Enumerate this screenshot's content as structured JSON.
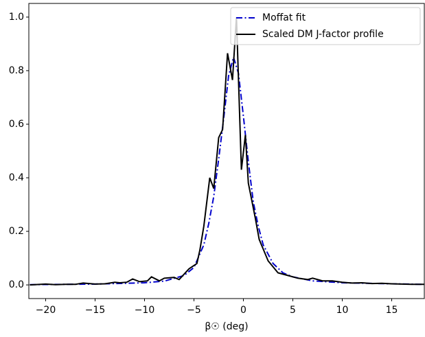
{
  "chart_data": {
    "type": "line",
    "x_label": "β☉ (deg)",
    "xlim": [
      -21.7,
      18.3
    ],
    "ylim": [
      -0.051,
      1.051
    ],
    "xticks": [
      {
        "value": -20,
        "label": "−20"
      },
      {
        "value": -15,
        "label": "−15"
      },
      {
        "value": -10,
        "label": "−10"
      },
      {
        "value": -5,
        "label": "−5"
      },
      0,
      5,
      10,
      15
    ],
    "yticks": [
      {
        "value": 0,
        "label": "0.0"
      },
      0.2,
      0.4,
      0.6,
      0.8,
      {
        "value": 1,
        "label": "1.0"
      }
    ],
    "legend": "upper right",
    "series": [
      {
        "name": "Moffat fit",
        "color": "#0000cc",
        "style": "dashdot",
        "x": [
          -21.6,
          -15,
          -10,
          -8,
          -6,
          -5,
          -4,
          -3.5,
          -3,
          -2.5,
          -2,
          -1.5,
          -1,
          -0.5,
          0,
          0.5,
          1,
          1.5,
          2,
          3,
          4,
          5,
          7,
          10,
          15,
          18.3
        ],
        "values": [
          0.001,
          0.003,
          0.008,
          0.014,
          0.035,
          0.065,
          0.15,
          0.23,
          0.33,
          0.47,
          0.62,
          0.78,
          0.85,
          0.79,
          0.63,
          0.46,
          0.31,
          0.22,
          0.15,
          0.08,
          0.045,
          0.03,
          0.015,
          0.008,
          0.004,
          0.002
        ]
      },
      {
        "name": "Scaled DM J-factor profile",
        "color": "#000000",
        "style": "solid",
        "x": [
          -21.6,
          -20,
          -19,
          -18,
          -17,
          -16.2,
          -15,
          -14,
          -13,
          -12.5,
          -11.8,
          -11.2,
          -10.5,
          -9.7,
          -9.3,
          -8.5,
          -8,
          -7,
          -6.5,
          -5.5,
          -4.7,
          -4.4,
          -4.0,
          -3.4,
          -3.0,
          -2.5,
          -2.1,
          -1.6,
          -1.1,
          -0.7,
          -0.2,
          0.2,
          0.5,
          1.2,
          1.6,
          2.5,
          3.5,
          4.5,
          5.5,
          6.5,
          7,
          8,
          9,
          10,
          11,
          12,
          13,
          14,
          15,
          16,
          17,
          18.3
        ],
        "values": [
          0.0,
          0.003,
          0.001,
          0.002,
          0.002,
          0.007,
          0.003,
          0.004,
          0.01,
          0.008,
          0.01,
          0.022,
          0.012,
          0.015,
          0.03,
          0.015,
          0.025,
          0.028,
          0.02,
          0.06,
          0.08,
          0.13,
          0.22,
          0.4,
          0.36,
          0.55,
          0.58,
          0.865,
          0.765,
          1.0,
          0.43,
          0.56,
          0.38,
          0.25,
          0.17,
          0.09,
          0.045,
          0.035,
          0.025,
          0.02,
          0.025,
          0.015,
          0.015,
          0.01,
          0.007,
          0.008,
          0.005,
          0.006,
          0.004,
          0.003,
          0.002,
          0.002
        ]
      }
    ]
  }
}
